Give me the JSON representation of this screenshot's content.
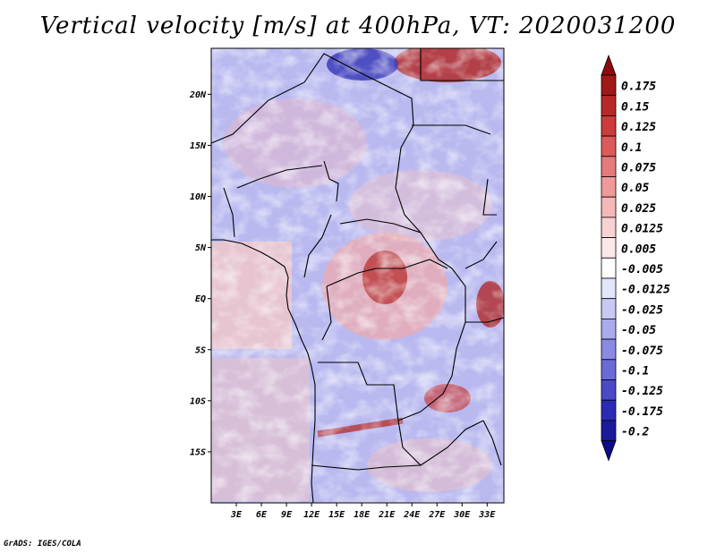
{
  "title": "Vertical velocity [m/s] at 400hPa, VT: 2020031200",
  "credit": "GrADS: IGES/COLA",
  "map": {
    "lat_range": [
      -20,
      24.5
    ],
    "lon_range": [
      0,
      35
    ],
    "lat_ticks": [
      {
        "value": 20,
        "label": "20N"
      },
      {
        "value": 15,
        "label": "15N"
      },
      {
        "value": 10,
        "label": "10N"
      },
      {
        "value": 5,
        "label": "5N"
      },
      {
        "value": 0,
        "label": "EQ"
      },
      {
        "value": -5,
        "label": "5S"
      },
      {
        "value": -10,
        "label": "10S"
      },
      {
        "value": -15,
        "label": "15S"
      }
    ],
    "lon_ticks": [
      {
        "value": 3,
        "label": "3E"
      },
      {
        "value": 6,
        "label": "6E"
      },
      {
        "value": 9,
        "label": "9E"
      },
      {
        "value": 12,
        "label": "12E"
      },
      {
        "value": 15,
        "label": "15E"
      },
      {
        "value": 18,
        "label": "18E"
      },
      {
        "value": 21,
        "label": "21E"
      },
      {
        "value": 24,
        "label": "24E"
      },
      {
        "value": 27,
        "label": "27E"
      },
      {
        "value": 30,
        "label": "30E"
      },
      {
        "value": 33,
        "label": "33E"
      }
    ]
  },
  "colorbar": {
    "levels": [
      {
        "label": "0.175",
        "color": "#a01818"
      },
      {
        "label": "0.15",
        "color": "#b82828"
      },
      {
        "label": "0.125",
        "color": "#cc3c3c"
      },
      {
        "label": "0.1",
        "color": "#dc5a5a"
      },
      {
        "label": "0.075",
        "color": "#e47a7a"
      },
      {
        "label": "0.05",
        "color": "#ee9a9a"
      },
      {
        "label": "0.025",
        "color": "#f4b8b8"
      },
      {
        "label": "0.0125",
        "color": "#f8d2d2"
      },
      {
        "label": "0.005",
        "color": "#fce8e8"
      },
      {
        "label": "-0.005",
        "color": "#ffffff"
      },
      {
        "label": "-0.0125",
        "color": "#e4e4fa"
      },
      {
        "label": "-0.025",
        "color": "#c8c8f4"
      },
      {
        "label": "-0.05",
        "color": "#aaaaee"
      },
      {
        "label": "-0.075",
        "color": "#8a8ae4"
      },
      {
        "label": "-0.1",
        "color": "#6a6ad8"
      },
      {
        "label": "-0.125",
        "color": "#4a4ac8"
      },
      {
        "label": "-0.175",
        "color": "#2a2ab4"
      },
      {
        "label": "-0.2",
        "color": "#1a1a9a"
      }
    ],
    "top_arrow_color": "#8c0c0c",
    "bottom_arrow_color": "#0c0c88"
  }
}
